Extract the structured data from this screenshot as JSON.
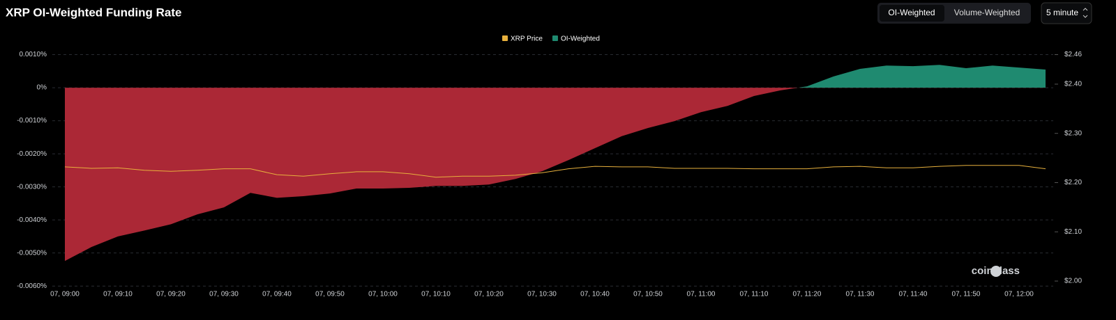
{
  "controls": {
    "tabs": [
      "OI-Weighted",
      "Volume-Weighted"
    ],
    "interval": "5 minute"
  },
  "chart_data": {
    "type": "area",
    "title": "XRP OI-Weighted Funding Rate",
    "watermark": "coinglass",
    "categories": [
      "07, 09:00",
      null,
      "07, 09:10",
      null,
      "07, 09:20",
      null,
      "07, 09:30",
      null,
      "07, 09:40",
      null,
      "07, 09:50",
      null,
      "07, 10:00",
      null,
      "07, 10:10",
      null,
      "07, 10:20",
      null,
      "07, 10:30",
      null,
      "07, 10:40",
      null,
      "07, 10:50",
      null,
      "07, 11:00",
      null,
      "07, 11:10",
      null,
      "07, 11:20",
      null,
      "07, 11:30",
      null,
      "07, 11:40",
      null,
      "07, 11:50",
      null,
      "07, 12:00",
      null
    ],
    "series": [
      {
        "name": "XRP Price",
        "type": "line",
        "axis": "y2",
        "color": "#e8b13d",
        "values": [
          2.232,
          2.229,
          2.23,
          2.225,
          2.223,
          2.225,
          2.228,
          2.228,
          2.216,
          2.213,
          2.218,
          2.222,
          2.222,
          2.218,
          2.211,
          2.213,
          2.213,
          2.215,
          2.22,
          2.228,
          2.233,
          2.232,
          2.232,
          2.229,
          2.229,
          2.229,
          2.228,
          2.228,
          2.228,
          2.232,
          2.233,
          2.23,
          2.23,
          2.233,
          2.235,
          2.235,
          2.235,
          2.228
        ]
      },
      {
        "name": "OI-Weighted",
        "type": "area",
        "color": "#1f8a70",
        "negative_color": "#ab2836",
        "values": [
          -0.00524,
          -0.00482,
          -0.0045,
          -0.00432,
          -0.00413,
          -0.00383,
          -0.00362,
          -0.00318,
          -0.00333,
          -0.00328,
          -0.0032,
          -0.00305,
          -0.00305,
          -0.00303,
          -0.00297,
          -0.00297,
          -0.00293,
          -0.00276,
          -0.00253,
          -0.00219,
          -0.00183,
          -0.00147,
          -0.00122,
          -0.00101,
          -0.00074,
          -0.00055,
          -0.00025,
          -8e-05,
          4e-05,
          0.00034,
          0.00057,
          0.00067,
          0.00065,
          0.00069,
          0.00059,
          0.00067,
          0.00061,
          0.00055
        ]
      }
    ],
    "ylim": [
      -0.00608,
      0.00118
    ],
    "yticks": [
      {
        "value": 0.001,
        "label": "0.0010%"
      },
      {
        "value": 0,
        "label": "0%"
      },
      {
        "value": -0.001,
        "label": "-0.0010%"
      },
      {
        "value": -0.002,
        "label": "-0.0020%"
      },
      {
        "value": -0.003,
        "label": "-0.0030%"
      },
      {
        "value": -0.004,
        "label": "-0.0040%"
      },
      {
        "value": -0.005,
        "label": "-0.0050%"
      },
      {
        "value": -0.006,
        "label": "-0.0060%"
      }
    ],
    "y2lim": [
      1.9845,
      2.472
    ],
    "y2ticks": [
      {
        "value": 2.46,
        "label": "$2.46"
      },
      {
        "value": 2.4,
        "label": "$2.40"
      },
      {
        "value": 2.3,
        "label": "$2.30"
      },
      {
        "value": 2.2,
        "label": "$2.20"
      },
      {
        "value": 2.1,
        "label": "$2.10"
      },
      {
        "value": 2.0,
        "label": "$2.00"
      }
    ],
    "grid": true,
    "legend": "top"
  }
}
